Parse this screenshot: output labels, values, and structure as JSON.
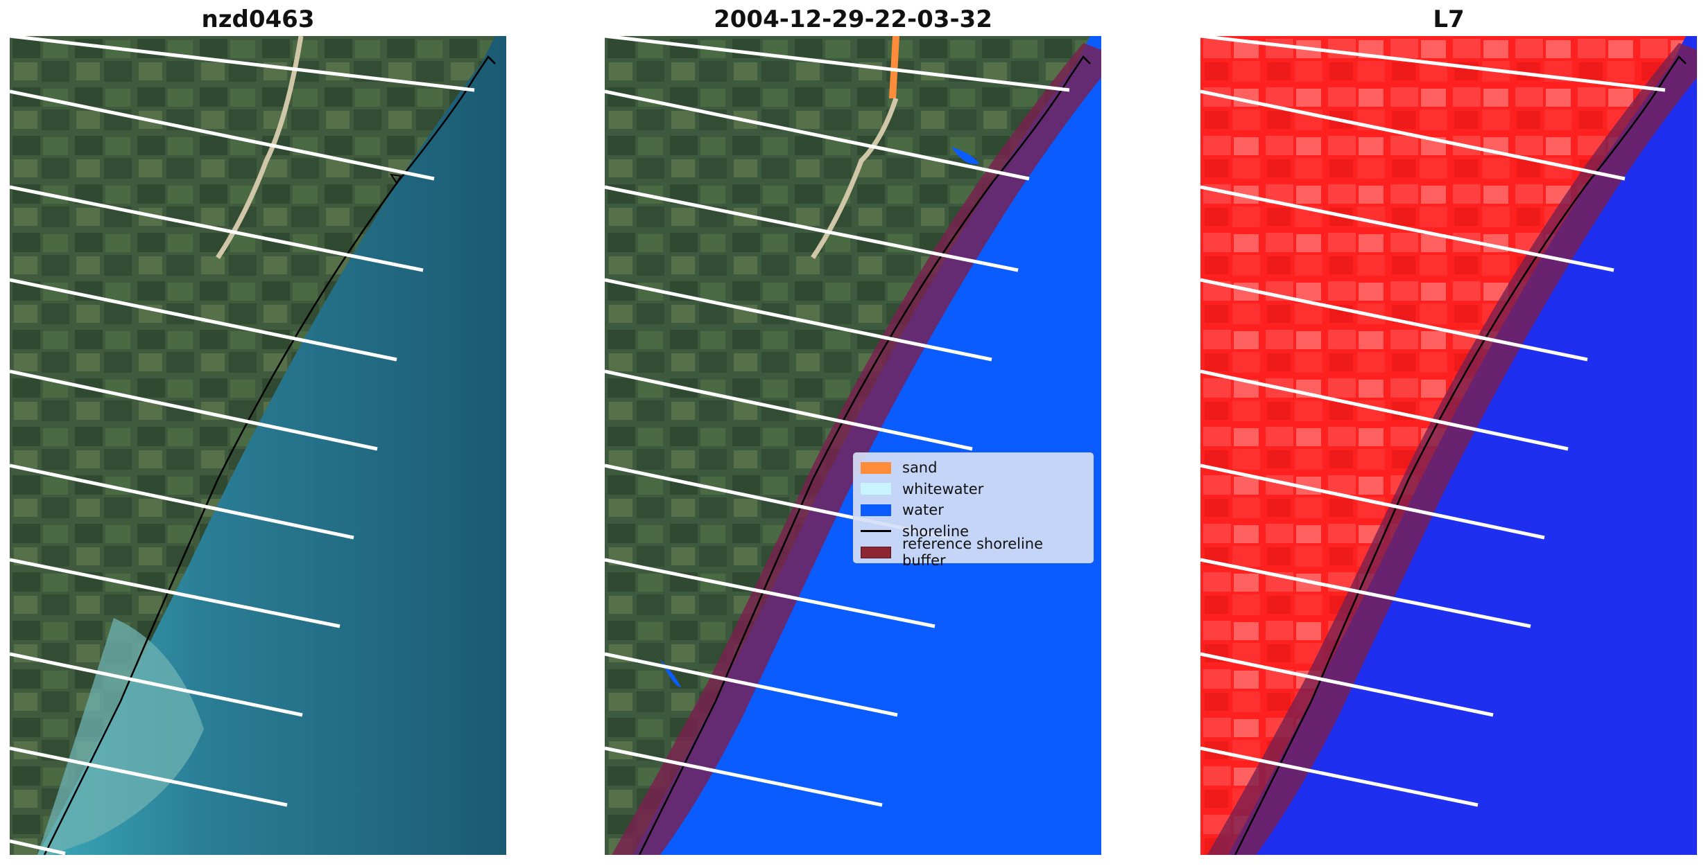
{
  "panels": [
    {
      "title": "nzd0463"
    },
    {
      "title": "2004-12-29-22-03-32"
    },
    {
      "title": "L7"
    }
  ],
  "legend": {
    "items": [
      {
        "label": "sand",
        "color": "#ff8c3a",
        "kind": "patch"
      },
      {
        "label": "whitewater",
        "color": "#c8f4ff",
        "kind": "patch"
      },
      {
        "label": "water",
        "color": "#0a5cff",
        "kind": "patch"
      },
      {
        "label": "shoreline",
        "color": "#000000",
        "kind": "line"
      },
      {
        "label": "reference shoreline buffer",
        "color": "#8b2632",
        "kind": "patch"
      }
    ]
  },
  "colors": {
    "land_rgb": "#3f5a3c",
    "sea_rgb": "#1f5f78",
    "land_classified": "#3d5a3e",
    "water_classified": "#0a5cff",
    "land_index": "#ff2020",
    "water_index": "#1e2ff0",
    "buffer": "#7a1f4f",
    "transect": "#ffffff",
    "shoreline": "#000000"
  }
}
